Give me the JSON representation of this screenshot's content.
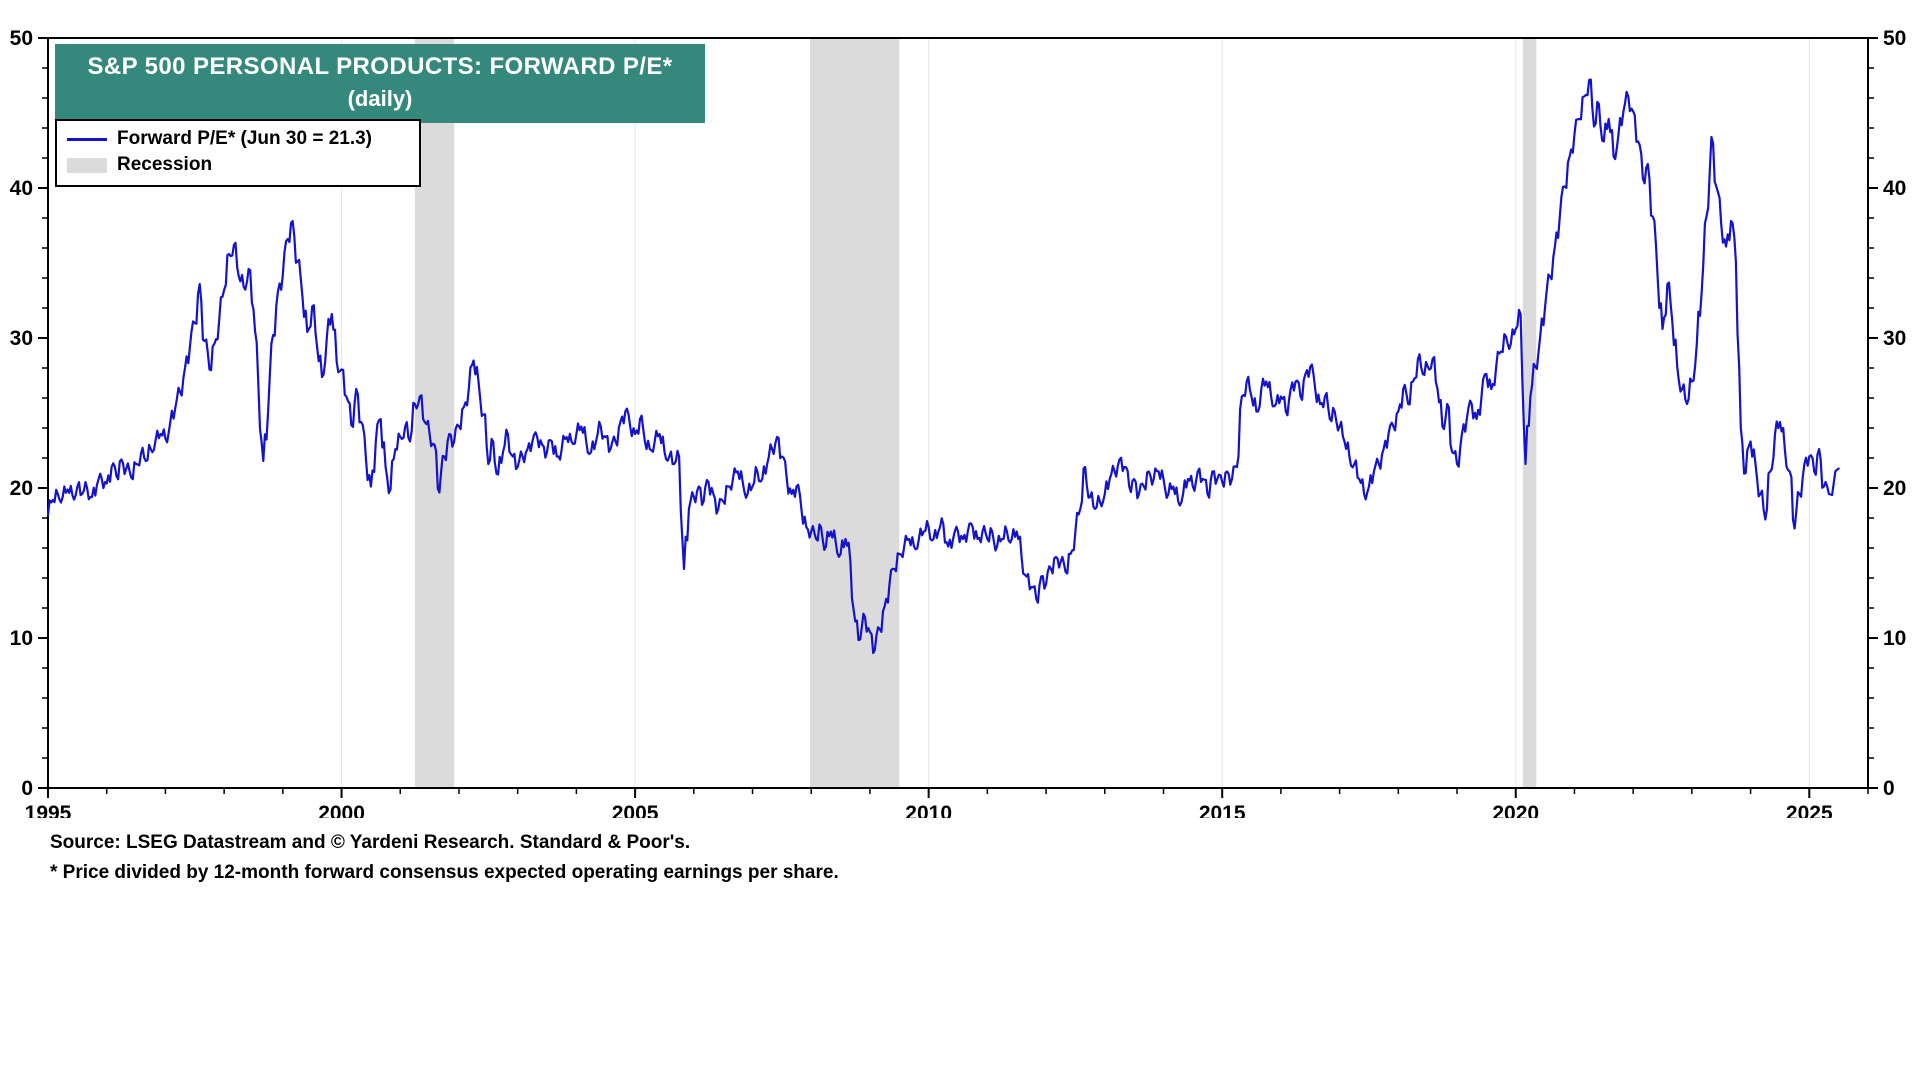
{
  "title": {
    "line1": "S&P 500 PERSONAL PRODUCTS: FORWARD P/E*",
    "line2": "(daily)",
    "bg_color": "#35897C"
  },
  "legend": {
    "items": [
      {
        "label": "Forward P/E* (Jun 30 = 21.3)",
        "type": "line",
        "color": "#1313CB"
      },
      {
        "label": "Recession",
        "type": "box",
        "color": "#DBDBDB"
      }
    ]
  },
  "footnotes": {
    "source": "Source: LSEG Datastream and © Yardeni Research. Standard & Poor's.",
    "note": "* Price divided by 12-month forward consensus expected operating earnings per share."
  },
  "chart_data": {
    "type": "line",
    "title": "S&P 500 PERSONAL PRODUCTS: FORWARD P/E* (daily)",
    "xlabel": "",
    "ylabel": "Forward P/E",
    "xlim": [
      1995,
      2026
    ],
    "ylim": [
      0,
      50
    ],
    "x_ticks": [
      1995,
      2000,
      2005,
      2010,
      2015,
      2020,
      2025
    ],
    "y_ticks": [
      0,
      10,
      20,
      30,
      40,
      50
    ],
    "x_minor_step": 1,
    "y_minor_step": 2,
    "grid": "vertical-major-light",
    "grid_color": "#E6E6E6",
    "legend_position": "top-left",
    "noise_amplitude": 0.45,
    "recession_bands": {
      "color": "#DBDBDB",
      "ranges": [
        [
          2001.25,
          2001.92
        ],
        [
          2007.98,
          2009.5
        ],
        [
          2020.12,
          2020.35
        ]
      ]
    },
    "series": [
      {
        "name": "Forward P/E*",
        "color": "#1313CB",
        "sampling": "monthly",
        "start_year": 1995,
        "last_point": {
          "x": 2025.5,
          "y": 21.3,
          "label": "Jun 30 = 21.3"
        },
        "values": [
          18.2,
          19.2,
          19.6,
          19.4,
          19.9,
          19.5,
          20.1,
          19.6,
          20.0,
          19.4,
          20.2,
          20.6,
          20.3,
          21.4,
          20.8,
          21.9,
          21.3,
          20.7,
          21.6,
          22.3,
          21.8,
          22.6,
          23.2,
          23.6,
          23.3,
          24.4,
          25.3,
          26.4,
          28.0,
          29.4,
          31.0,
          33.6,
          29.8,
          27.9,
          29.6,
          31.2,
          33.2,
          35.6,
          36.2,
          34.1,
          33.4,
          34.6,
          31.9,
          26.8,
          21.8,
          25.2,
          30.2,
          33.1,
          34.2,
          36.6,
          37.8,
          35.1,
          32.8,
          30.4,
          32.1,
          29.4,
          27.4,
          30.1,
          31.6,
          28.4,
          27.9,
          26.1,
          24.2,
          26.6,
          24.4,
          21.9,
          20.1,
          23.1,
          24.6,
          21.4,
          19.9,
          22.6,
          23.4,
          24.1,
          23.1,
          25.6,
          26.1,
          24.4,
          23.6,
          22.9,
          19.7,
          22.1,
          23.6,
          23.1,
          24.1,
          25.4,
          26.6,
          28.5,
          27.1,
          24.9,
          21.6,
          23.1,
          20.9,
          22.4,
          23.6,
          22.1,
          21.4,
          22.1,
          22.6,
          23.1,
          23.4,
          22.9,
          22.4,
          23.1,
          22.1,
          22.6,
          23.4,
          23.1,
          23.6,
          24.1,
          23.1,
          22.4,
          23.1,
          24.1,
          23.4,
          22.6,
          23.1,
          24.4,
          25.1,
          24.1,
          23.6,
          24.6,
          23.1,
          22.6,
          23.1,
          23.6,
          22.4,
          22.1,
          21.6,
          22.1,
          14.6,
          18.6,
          19.4,
          20.1,
          19.1,
          20.4,
          19.6,
          18.6,
          19.1,
          20.1,
          20.6,
          21.1,
          20.4,
          19.6,
          20.1,
          21.1,
          20.6,
          21.6,
          22.6,
          23.4,
          22.1,
          20.6,
          19.6,
          20.1,
          18.6,
          17.4,
          17.1,
          16.6,
          17.4,
          16.1,
          17.1,
          16.4,
          15.6,
          16.6,
          15.1,
          11.1,
          9.9,
          11.4,
          10.4,
          9.2,
          10.6,
          12.1,
          13.6,
          14.6,
          15.6,
          16.1,
          16.6,
          16.1,
          16.6,
          17.1,
          17.4,
          16.6,
          17.1,
          17.6,
          16.1,
          16.6,
          17.1,
          16.6,
          17.1,
          17.4,
          16.6,
          17.1,
          16.6,
          17.1,
          16.1,
          16.6,
          17.1,
          16.6,
          17.1,
          15.4,
          14.1,
          13.4,
          12.6,
          14.1,
          13.6,
          14.6,
          15.4,
          15.1,
          14.4,
          15.6,
          17.1,
          18.6,
          21.4,
          19.4,
          18.6,
          19.1,
          19.6,
          20.6,
          21.1,
          21.9,
          21.4,
          20.1,
          20.6,
          19.6,
          20.1,
          21.1,
          20.6,
          21.1,
          20.6,
          19.6,
          20.1,
          19.1,
          19.6,
          20.6,
          20.1,
          21.1,
          20.6,
          19.6,
          21.1,
          20.6,
          20.4,
          21.1,
          20.6,
          21.4,
          26.1,
          27.1,
          26.1,
          25.1,
          26.6,
          27.1,
          26.1,
          25.6,
          26.1,
          25.1,
          26.6,
          27.1,
          26.1,
          27.6,
          28.1,
          26.6,
          25.6,
          26.1,
          24.6,
          25.1,
          24.1,
          23.1,
          22.1,
          21.6,
          20.6,
          19.6,
          20.1,
          21.1,
          21.6,
          22.6,
          23.6,
          24.1,
          25.1,
          26.6,
          25.6,
          27.1,
          28.6,
          27.6,
          28.1,
          28.6,
          26.6,
          24.1,
          25.6,
          22.4,
          21.6,
          23.6,
          24.6,
          25.6,
          24.6,
          26.1,
          27.6,
          26.6,
          28.1,
          29.1,
          30.1,
          29.6,
          30.6,
          31.6,
          21.6,
          26.1,
          28.1,
          30.1,
          32.1,
          34.1,
          36.1,
          38.1,
          40.1,
          42.1,
          43.6,
          44.6,
          46.1,
          47.2,
          44.1,
          45.6,
          43.1,
          44.6,
          42.1,
          43.6,
          45.1,
          46.1,
          45.1,
          43.1,
          40.6,
          41.6,
          38.1,
          34.1,
          30.6,
          33.6,
          31.1,
          28.1,
          26.6,
          25.6,
          27.1,
          29.6,
          33.1,
          38.1,
          43.4,
          40.1,
          37.6,
          36.1,
          37.8,
          35.1,
          24.0,
          21.0,
          23.1,
          21.6,
          19.6,
          17.9,
          21.1,
          23.6,
          24.4,
          22.6,
          21.1,
          17.3,
          19.6,
          21.6,
          22.1,
          21.1,
          22.6,
          20.1,
          19.6,
          21.3
        ]
      }
    ]
  }
}
